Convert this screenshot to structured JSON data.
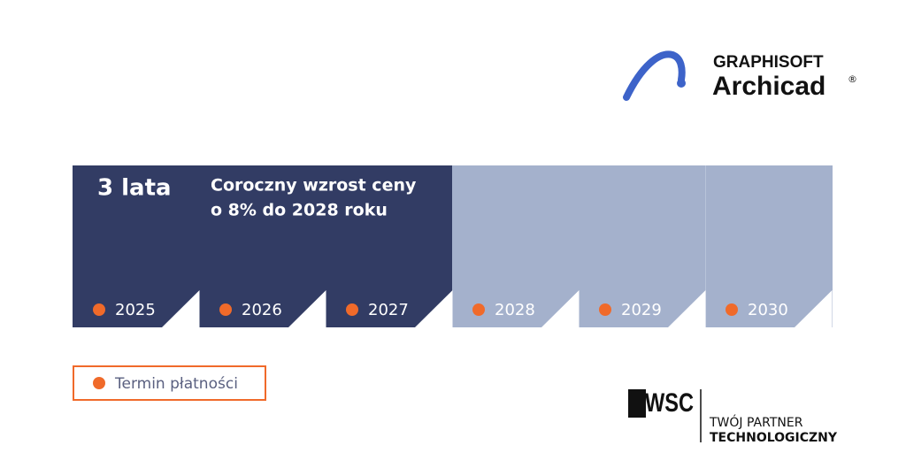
{
  "logo": {
    "brand": "GRAPHISOFT",
    "product": "Archicad",
    "mark": "®"
  },
  "timeline": {
    "term": "3 lata",
    "note_lines": [
      "Coroczny wzrost ceny",
      "o 8% do 2028 roku"
    ],
    "years": [
      "2025",
      "2026",
      "2027",
      "2028",
      "2029",
      "2030"
    ]
  },
  "legend": {
    "label": "Termin płatności"
  },
  "partner": {
    "logo": "WSC",
    "line1": "TWÓJ PARTNER",
    "line2": "TECHNOLOGICZNY"
  }
}
